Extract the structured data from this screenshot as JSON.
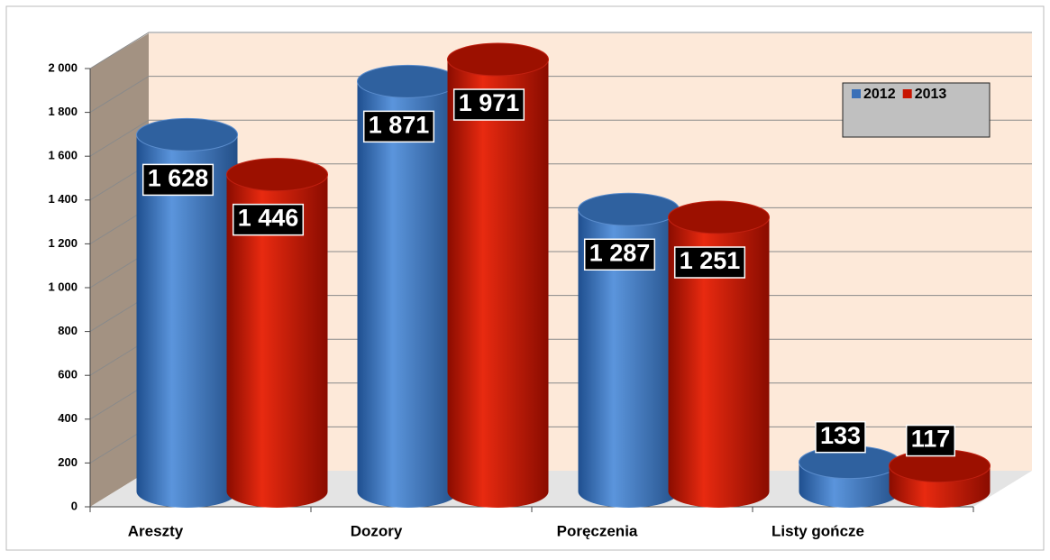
{
  "chart_data": {
    "type": "bar",
    "style": "3d-cylinder",
    "categories": [
      "Areszty",
      "Dozory",
      "Poręczenia",
      "Listy gończe"
    ],
    "series": [
      {
        "name": "2012",
        "color": "#3a70b8",
        "values": [
          1628,
          1871,
          1287,
          133
        ],
        "value_labels": [
          "1 628",
          "1 871",
          "1 287",
          "133"
        ]
      },
      {
        "name": "2013",
        "color": "#c81400",
        "values": [
          1446,
          1971,
          1251,
          117
        ],
        "value_labels": [
          "1 446",
          "1 971",
          "1 251",
          "117"
        ]
      }
    ],
    "ylim": [
      0,
      2000
    ],
    "yticks": [
      0,
      200,
      400,
      600,
      800,
      {
        "value": 1000,
        "label": "1 000"
      },
      {
        "value": 1200,
        "label": "1 200"
      },
      {
        "value": 1400,
        "label": "1 400"
      },
      {
        "value": 1600,
        "label": "1 600"
      },
      {
        "value": 1800,
        "label": "1 800"
      },
      {
        "value": 2000,
        "label": "2 000"
      }
    ],
    "grid": true,
    "legend": "top-right"
  }
}
